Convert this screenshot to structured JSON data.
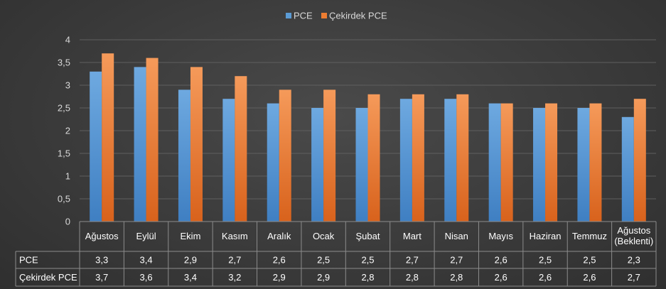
{
  "chart_data": {
    "type": "bar",
    "categories": [
      "Ağustos",
      "Eylül",
      "Ekim",
      "Kasım",
      "Aralık",
      "Ocak",
      "Şubat",
      "Mart",
      "Nisan",
      "Mayıs",
      "Haziran",
      "Temmuz",
      "Ağustos (Beklenti)"
    ],
    "category_lines": [
      [
        "Ağustos"
      ],
      [
        "Eylül"
      ],
      [
        "Ekim"
      ],
      [
        "Kasım"
      ],
      [
        "Aralık"
      ],
      [
        "Ocak"
      ],
      [
        "Şubat"
      ],
      [
        "Mart"
      ],
      [
        "Nisan"
      ],
      [
        "Mayıs"
      ],
      [
        "Haziran"
      ],
      [
        "Temmuz"
      ],
      [
        "Ağustos",
        "(Beklenti)"
      ]
    ],
    "series": [
      {
        "name": "PCE",
        "color": "#5b9bd5",
        "values": [
          3.3,
          3.4,
          2.9,
          2.7,
          2.6,
          2.5,
          2.5,
          2.7,
          2.7,
          2.6,
          2.5,
          2.5,
          2.3
        ],
        "labels": [
          "3,3",
          "3,4",
          "2,9",
          "2,7",
          "2,6",
          "2,5",
          "2,5",
          "2,7",
          "2,7",
          "2,6",
          "2,5",
          "2,5",
          "2,3"
        ]
      },
      {
        "name": "Çekirdek PCE",
        "color": "#ed7d31",
        "values": [
          3.7,
          3.6,
          3.4,
          3.2,
          2.9,
          2.9,
          2.8,
          2.8,
          2.8,
          2.6,
          2.6,
          2.6,
          2.7
        ],
        "labels": [
          "3,7",
          "3,6",
          "3,4",
          "3,2",
          "2,9",
          "2,9",
          "2,8",
          "2,8",
          "2,8",
          "2,6",
          "2,6",
          "2,6",
          "2,7"
        ]
      }
    ],
    "ylim": [
      0,
      4
    ],
    "y_ticks": [
      0,
      0.5,
      1,
      1.5,
      2,
      2.5,
      3,
      3.5,
      4
    ],
    "y_tick_labels": [
      "0",
      "0,5",
      "1",
      "1,5",
      "2",
      "2,5",
      "3",
      "3,5",
      "4"
    ],
    "legend": {
      "placement": "top-center",
      "entries": [
        "PCE",
        "Çekirdek PCE"
      ]
    },
    "grid": true,
    "data_table": true,
    "title": "",
    "xlabel": "",
    "ylabel": ""
  }
}
